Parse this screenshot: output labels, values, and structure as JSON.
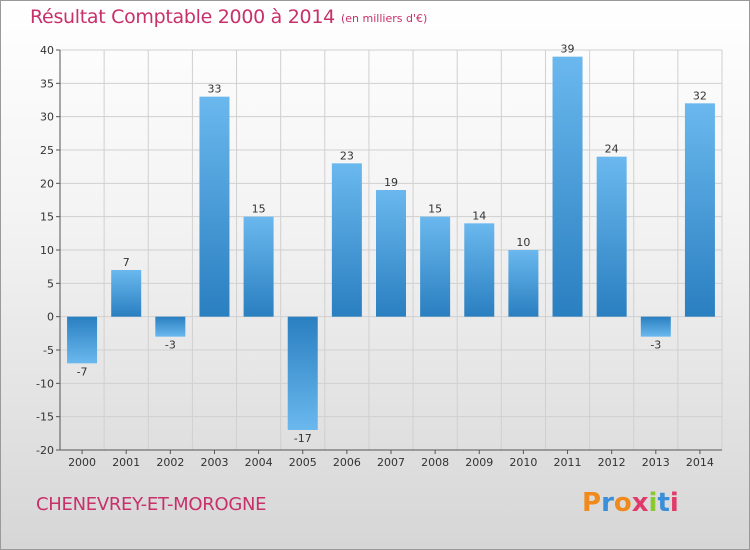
{
  "title": "Résultat Comptable 2000 à 2014",
  "subtitle": "(en milliers d'€)",
  "commune": "CHENEVREY-ET-MOROGNE",
  "logo": {
    "letters": [
      "P",
      "r",
      "o",
      "x",
      "i",
      "t",
      "i"
    ],
    "colors": [
      "#f08a1c",
      "#3a8fd8",
      "#f08a1c",
      "#e03a6a",
      "#8ac832",
      "#3a8fd8",
      "#e03a6a"
    ]
  },
  "colors": {
    "title": "#c8306a",
    "bar_light": "#6ab8ee",
    "bar_dark": "#2a7fc0",
    "grid": "#d0d0d0"
  },
  "chart_data": {
    "type": "bar",
    "title": "Résultat Comptable 2000 à 2014",
    "xlabel": "",
    "ylabel": "",
    "ylim": [
      -20,
      40
    ],
    "yticks": [
      -20,
      -15,
      -10,
      -5,
      0,
      5,
      10,
      15,
      20,
      25,
      30,
      35,
      40
    ],
    "categories": [
      "2000",
      "2001",
      "2002",
      "2003",
      "2004",
      "2005",
      "2006",
      "2007",
      "2008",
      "2009",
      "2010",
      "2011",
      "2012",
      "2013",
      "2014"
    ],
    "values": [
      -7,
      7,
      -3,
      33,
      15,
      -17,
      23,
      19,
      15,
      14,
      10,
      39,
      24,
      -3,
      32
    ],
    "value_labels": [
      "-7",
      "7",
      "-3",
      "33",
      "15",
      "-17",
      "23",
      "19",
      "15",
      "14",
      "10",
      "39",
      "24",
      "-3",
      "32"
    ]
  }
}
